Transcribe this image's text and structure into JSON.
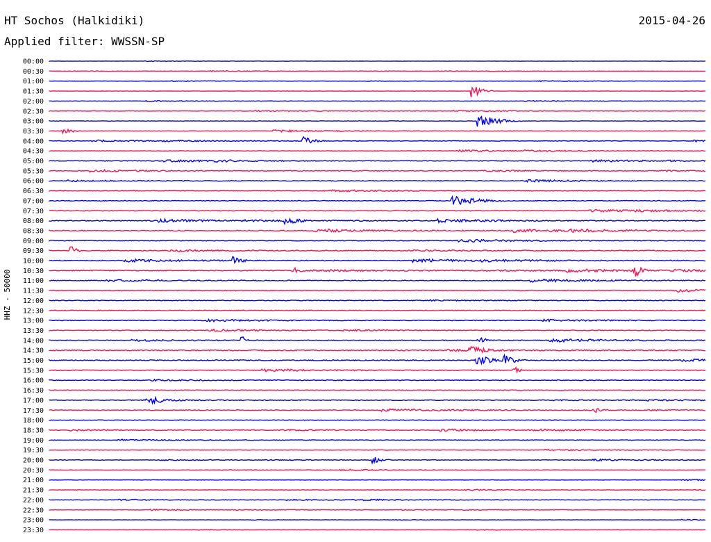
{
  "header": {
    "station": "HT Sochos (Halkidiki)",
    "date": "2015-04-26",
    "filter_line": "Applied filter: WWSSN-SP"
  },
  "colors": {
    "background": "#ffffff",
    "text": "#000000",
    "trace_a": "#0000ff",
    "trace_b": "#ff1050"
  },
  "chart_data": {
    "type": "line",
    "title": "HT Sochos (Halkidiki)",
    "subtitle": "Applied filter: WWSSN-SP",
    "date": "2015-04-26",
    "ylabel": "HHZ - 50000",
    "xlabel": "",
    "row_interval_minutes": 30,
    "row_labels": [
      "00:00",
      "00:30",
      "01:00",
      "01:30",
      "02:00",
      "02:30",
      "03:00",
      "03:30",
      "04:00",
      "04:30",
      "05:00",
      "05:30",
      "06:00",
      "06:30",
      "07:00",
      "07:30",
      "08:00",
      "08:30",
      "09:00",
      "09:30",
      "10:00",
      "10:30",
      "11:00",
      "11:30",
      "12:00",
      "12:30",
      "13:00",
      "13:30",
      "14:00",
      "14:30",
      "15:00",
      "15:30",
      "16:00",
      "16:30",
      "17:00",
      "17:30",
      "18:00",
      "18:30",
      "19:00",
      "19:30",
      "20:00",
      "20:30",
      "21:00",
      "21:30",
      "22:00",
      "22:30",
      "23:00",
      "23:30"
    ],
    "series_colors": [
      "#0000ff",
      "#ff1050"
    ],
    "noise_level": [
      0.15,
      0.2,
      0.2,
      0.2,
      0.25,
      0.3,
      0.3,
      0.35,
      0.4,
      0.35,
      0.45,
      0.5,
      0.5,
      0.45,
      0.5,
      0.55,
      0.6,
      0.65,
      0.55,
      0.55,
      0.6,
      0.6,
      0.55,
      0.55,
      0.5,
      0.55,
      0.5,
      0.5,
      0.6,
      0.7,
      0.7,
      0.55,
      0.5,
      0.5,
      0.45,
      0.5,
      0.45,
      0.4,
      0.4,
      0.35,
      0.35,
      0.3,
      0.3,
      0.3,
      0.3,
      0.25,
      0.2,
      0.2
    ],
    "events": [
      {
        "row": 3,
        "minute": 19.3,
        "amplitude": 1.3,
        "duration_min": 1.0
      },
      {
        "row": 6,
        "minute": 19.6,
        "amplitude": 1.1,
        "duration_min": 2.0
      },
      {
        "row": 7,
        "minute": 0.6,
        "amplitude": 0.7,
        "duration_min": 1.0
      },
      {
        "row": 8,
        "minute": 11.6,
        "amplitude": 0.7,
        "duration_min": 1.5
      },
      {
        "row": 14,
        "minute": 18.4,
        "amplitude": 0.8,
        "duration_min": 3.0
      },
      {
        "row": 16,
        "minute": 10.8,
        "amplitude": 0.6,
        "duration_min": 2.0
      },
      {
        "row": 19,
        "minute": 1.0,
        "amplitude": 0.8,
        "duration_min": 0.6
      },
      {
        "row": 20,
        "minute": 8.4,
        "amplitude": 0.7,
        "duration_min": 1.0
      },
      {
        "row": 21,
        "minute": 26.7,
        "amplitude": 1.4,
        "duration_min": 0.8
      },
      {
        "row": 21,
        "minute": 11.1,
        "amplitude": 0.7,
        "duration_min": 0.8
      },
      {
        "row": 28,
        "minute": 8.8,
        "amplitude": 0.7,
        "duration_min": 0.6
      },
      {
        "row": 28,
        "minute": 19.6,
        "amplitude": 0.6,
        "duration_min": 1.0
      },
      {
        "row": 29,
        "minute": 19.2,
        "amplitude": 0.7,
        "duration_min": 2.0
      },
      {
        "row": 30,
        "minute": 19.5,
        "amplitude": 1.0,
        "duration_min": 1.6
      },
      {
        "row": 30,
        "minute": 20.8,
        "amplitude": 0.9,
        "duration_min": 1.2
      },
      {
        "row": 31,
        "minute": 21.2,
        "amplitude": 0.8,
        "duration_min": 0.6
      },
      {
        "row": 34,
        "minute": 4.6,
        "amplitude": 1.0,
        "duration_min": 1.2
      },
      {
        "row": 35,
        "minute": 24.9,
        "amplitude": 0.6,
        "duration_min": 1.0
      },
      {
        "row": 40,
        "minute": 14.8,
        "amplitude": 0.7,
        "duration_min": 0.8
      }
    ]
  }
}
